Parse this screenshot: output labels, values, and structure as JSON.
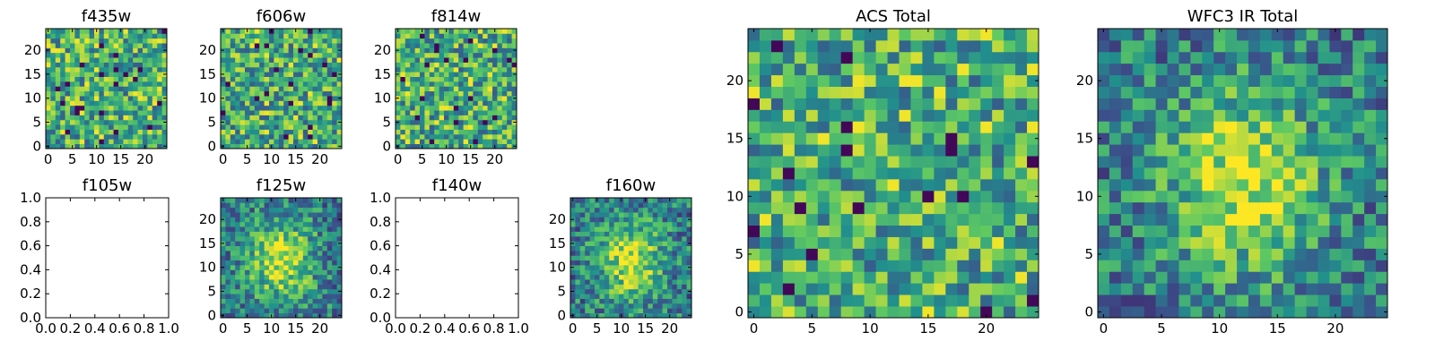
{
  "chart_data": [
    {
      "type": "heatmap",
      "title": "f435w",
      "empty": false,
      "grid_size": 25,
      "seed": 11,
      "structure": "noise",
      "xlim": [
        -0.5,
        24.5
      ],
      "ylim": [
        -0.5,
        24.5
      ],
      "xticks": [
        0,
        5,
        10,
        15,
        20
      ],
      "yticks": [
        0,
        5,
        10,
        15,
        20
      ],
      "xticklabels": [
        "0",
        "5",
        "10",
        "15",
        "20"
      ],
      "yticklabels": [
        "0",
        "5",
        "10",
        "15",
        "20"
      ]
    },
    {
      "type": "heatmap",
      "title": "f606w",
      "empty": false,
      "grid_size": 25,
      "seed": 23,
      "structure": "noise",
      "xlim": [
        -0.5,
        24.5
      ],
      "ylim": [
        -0.5,
        24.5
      ],
      "xticks": [
        0,
        5,
        10,
        15,
        20
      ],
      "yticks": [
        0,
        5,
        10,
        15,
        20
      ],
      "xticklabels": [
        "0",
        "5",
        "10",
        "15",
        "20"
      ],
      "yticklabels": [
        "0",
        "5",
        "10",
        "15",
        "20"
      ]
    },
    {
      "type": "heatmap",
      "title": "f814w",
      "empty": false,
      "grid_size": 25,
      "seed": 37,
      "structure": "noise",
      "xlim": [
        -0.5,
        24.5
      ],
      "ylim": [
        -0.5,
        24.5
      ],
      "xticks": [
        0,
        5,
        10,
        15,
        20
      ],
      "yticks": [
        0,
        5,
        10,
        15,
        20
      ],
      "xticklabels": [
        "0",
        "5",
        "10",
        "15",
        "20"
      ],
      "yticklabels": [
        "0",
        "5",
        "10",
        "15",
        "20"
      ]
    },
    {
      "type": "line",
      "title": "f105w",
      "empty": true,
      "xlim": [
        0,
        1
      ],
      "ylim": [
        0,
        1
      ],
      "xticks": [
        0,
        0.2,
        0.4,
        0.6,
        0.8,
        1.0
      ],
      "yticks": [
        0,
        0.2,
        0.4,
        0.6,
        0.8,
        1.0
      ],
      "xticklabels": [
        "0.0",
        "0.2",
        "0.4",
        "0.6",
        "0.8",
        "1.0"
      ],
      "yticklabels": [
        "0.0",
        "0.2",
        "0.4",
        "0.6",
        "0.8",
        "1.0"
      ]
    },
    {
      "type": "heatmap",
      "title": "f125w",
      "empty": false,
      "grid_size": 25,
      "seed": 53,
      "structure": "blob",
      "xlim": [
        -0.5,
        24.5
      ],
      "ylim": [
        -0.5,
        24.5
      ],
      "xticks": [
        0,
        5,
        10,
        15,
        20
      ],
      "yticks": [
        0,
        5,
        10,
        15,
        20
      ],
      "xticklabels": [
        "0",
        "5",
        "10",
        "15",
        "20"
      ],
      "yticklabels": [
        "0",
        "5",
        "10",
        "15",
        "20"
      ]
    },
    {
      "type": "line",
      "title": "f140w",
      "empty": true,
      "xlim": [
        0,
        1
      ],
      "ylim": [
        0,
        1
      ],
      "xticks": [
        0,
        0.2,
        0.4,
        0.6,
        0.8,
        1.0
      ],
      "yticks": [
        0,
        0.2,
        0.4,
        0.6,
        0.8,
        1.0
      ],
      "xticklabels": [
        "0.0",
        "0.2",
        "0.4",
        "0.6",
        "0.8",
        "1.0"
      ],
      "yticklabels": [
        "0.0",
        "0.2",
        "0.4",
        "0.6",
        "0.8",
        "1.0"
      ]
    },
    {
      "type": "heatmap",
      "title": "f160w",
      "empty": false,
      "grid_size": 25,
      "seed": 71,
      "structure": "blob",
      "xlim": [
        -0.5,
        24.5
      ],
      "ylim": [
        -0.5,
        24.5
      ],
      "xticks": [
        0,
        5,
        10,
        15,
        20
      ],
      "yticks": [
        0,
        5,
        10,
        15,
        20
      ],
      "xticklabels": [
        "0",
        "5",
        "10",
        "15",
        "20"
      ],
      "yticklabels": [
        "0",
        "5",
        "10",
        "15",
        "20"
      ]
    },
    {
      "type": "heatmap",
      "title": "ACS Total",
      "empty": false,
      "grid_size": 25,
      "seed": 89,
      "structure": "noise",
      "xlim": [
        -0.5,
        24.5
      ],
      "ylim": [
        -0.5,
        24.5
      ],
      "xticks": [
        0,
        5,
        10,
        15,
        20
      ],
      "yticks": [
        0,
        5,
        10,
        15,
        20
      ],
      "xticklabels": [
        "0",
        "5",
        "10",
        "15",
        "20"
      ],
      "yticklabels": [
        "0",
        "5",
        "10",
        "15",
        "20"
      ]
    },
    {
      "type": "heatmap",
      "title": "WFC3 IR Total",
      "empty": false,
      "grid_size": 25,
      "seed": 97,
      "structure": "blob",
      "xlim": [
        -0.5,
        24.5
      ],
      "ylim": [
        -0.5,
        24.5
      ],
      "xticks": [
        0,
        5,
        10,
        15,
        20
      ],
      "yticks": [
        0,
        5,
        10,
        15,
        20
      ],
      "xticklabels": [
        "0",
        "5",
        "10",
        "15",
        "20"
      ],
      "yticklabels": [
        "0",
        "5",
        "10",
        "15",
        "20"
      ]
    }
  ],
  "colormap": [
    "#440154",
    "#3b528b",
    "#21908d",
    "#5dc863",
    "#fde725"
  ]
}
